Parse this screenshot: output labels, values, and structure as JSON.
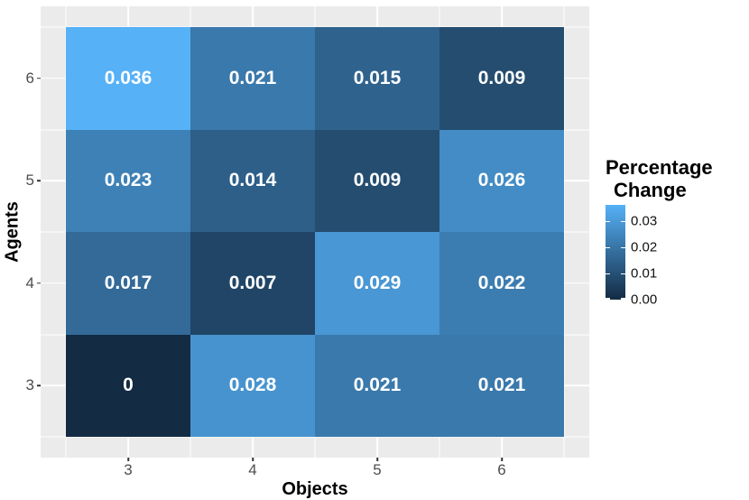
{
  "chart_data": {
    "type": "heatmap",
    "xlabel": "Objects",
    "ylabel": "Agents",
    "x_categories": [
      "3",
      "4",
      "5",
      "6"
    ],
    "y_categories": [
      "6",
      "5",
      "4",
      "3"
    ],
    "matrix": [
      [
        0.036,
        0.021,
        0.015,
        0.009
      ],
      [
        0.023,
        0.014,
        0.009,
        0.026
      ],
      [
        0.017,
        0.007,
        0.029,
        0.022
      ],
      [
        0,
        0.028,
        0.021,
        0.021
      ]
    ],
    "scale": {
      "low": "#132B43",
      "high": "#56B1F7",
      "min": 0,
      "max": 0.036
    },
    "legend": {
      "title_line1": "Percentage",
      "title_line2": "Change",
      "ticks": [
        "0.03",
        "0.02",
        "0.01",
        "0.00"
      ],
      "position": "right"
    },
    "layout": {
      "grid": "on",
      "panel": "gray",
      "tiles_per_side": 4
    },
    "colors": {
      "panel_background": "#EBEBEB",
      "axis_text": "#4D4D4D",
      "tick_mark": "#333333",
      "cell_text": "#FFFFFF",
      "legend_text": "#111111",
      "figure_background": "#FFFFFF"
    }
  }
}
